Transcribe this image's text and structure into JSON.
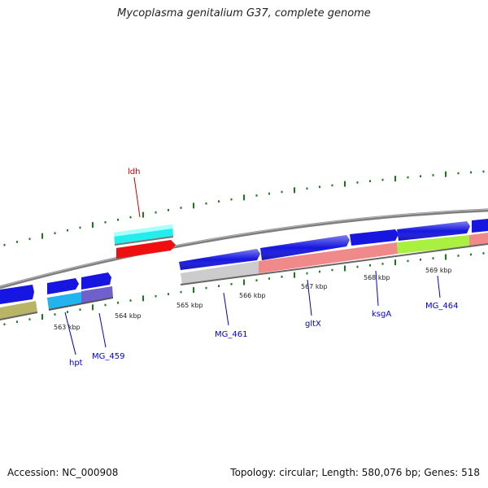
{
  "title": "Mycoplasma genitalium G37, complete genome",
  "footer": {
    "accession": "Accession: NC_000908",
    "summary": "Topology: circular; Length: 580,076 bp; Genes: 518"
  },
  "ruler": {
    "labels": [
      {
        "text": "563 kbp",
        "kbp": 563
      },
      {
        "text": "564 kbp",
        "kbp": 564
      },
      {
        "text": "565 kbp",
        "kbp": 565
      },
      {
        "text": "566 kbp",
        "kbp": 566
      },
      {
        "text": "567 kbp",
        "kbp": 567
      },
      {
        "text": "568 kbp",
        "kbp": 568
      },
      {
        "text": "569 kbp",
        "kbp": 569
      }
    ]
  },
  "genes": [
    {
      "label": "ldh",
      "label_color": "#cc0000"
    },
    {
      "label": "hpt",
      "label_color": "#0000cc"
    },
    {
      "label": "MG_459",
      "label_color": "#0000cc"
    },
    {
      "label": "MG_461",
      "label_color": "#0000cc"
    },
    {
      "label": "gltX",
      "label_color": "#0000cc"
    },
    {
      "label": "ksgA",
      "label_color": "#0000cc"
    },
    {
      "label": "MG_464",
      "label_color": "#0000cc"
    }
  ],
  "colors": {
    "backbone": "#888888",
    "cds": "#1414e6",
    "tick": "#1a7a1a",
    "label_line": "#0000cc",
    "ldh_line": "#cc0000"
  }
}
